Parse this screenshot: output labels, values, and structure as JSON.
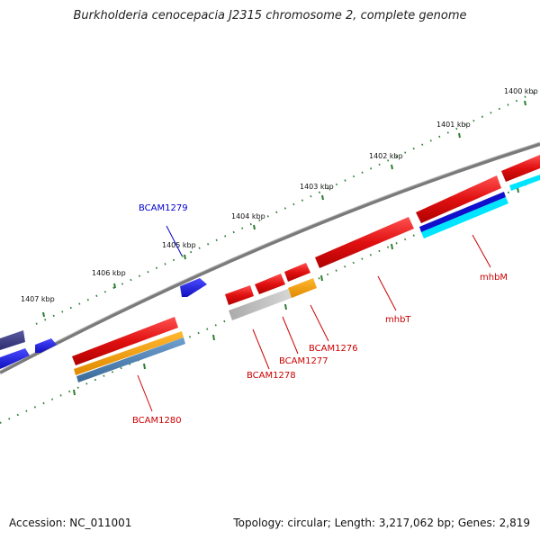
{
  "title": "Burkholderia cenocepacia J2315 chromosome 2, complete genome",
  "footer": {
    "accession": "Accession: NC_011001",
    "topology": "Topology: circular; Length: 3,217,062 bp; Genes: 2,819"
  },
  "ruler": {
    "labels": [
      "1400 kbp",
      "1401 kbp",
      "1402 kbp",
      "1403 kbp",
      "1404 kbp",
      "1405 kbp",
      "1406 kbp",
      "1407 kbp"
    ]
  },
  "colors": {
    "backbone": "#808080",
    "tick": "#2e7d32",
    "forward_gene": "#1e1edc",
    "reverse_gene": "#e01010",
    "label_forward": "#0000cc",
    "label_reverse": "#cc0000",
    "cds_orange": "#f5a000",
    "cds_steel": "#4a7fb0",
    "cds_gray": "#bbbbbb",
    "cds_blue": "#1010cc",
    "cds_cyan": "#00e5ff",
    "navy_gene": "#3d3d8a"
  },
  "gene_labels": [
    {
      "text": "BCAM1279",
      "strand": "forward"
    },
    {
      "text": "BCAM1280",
      "strand": "reverse"
    },
    {
      "text": "BCAM1278",
      "strand": "reverse"
    },
    {
      "text": "BCAM1277",
      "strand": "reverse"
    },
    {
      "text": "BCAM1276",
      "strand": "reverse"
    },
    {
      "text": "mhbT",
      "strand": "reverse"
    },
    {
      "text": "mhbM",
      "strand": "reverse"
    }
  ]
}
